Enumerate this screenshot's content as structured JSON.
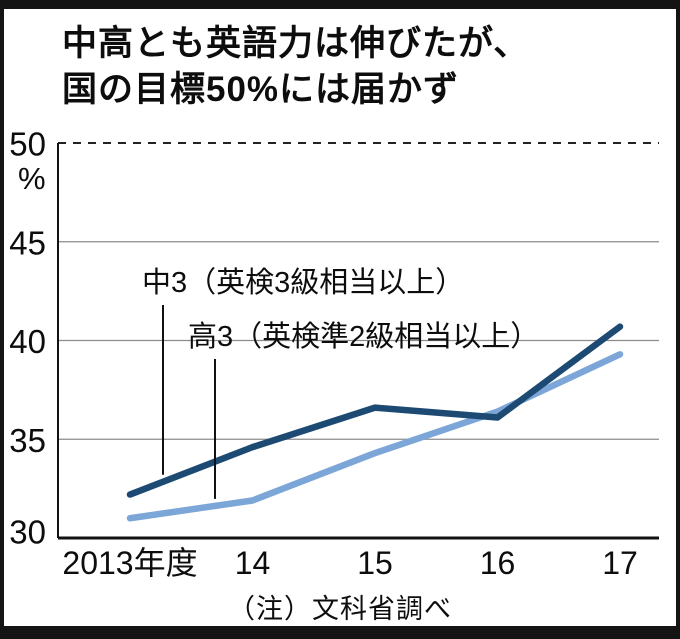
{
  "title": {
    "line1": "中高とも英語力は伸びたが、",
    "line2": "国の目標50%には届かず"
  },
  "note": "（注）文科省調べ",
  "chart_data": {
    "type": "line",
    "categories": [
      "2013年度",
      "14",
      "15",
      "16",
      "17"
    ],
    "series": [
      {
        "name": "中3（英検3級相当以上）",
        "values": [
          32.2,
          34.6,
          36.6,
          36.1,
          40.7
        ],
        "color": "#1d4a73"
      },
      {
        "name": "高3（英検準2級相当以上）",
        "values": [
          31.0,
          31.9,
          34.3,
          36.4,
          39.3
        ],
        "color": "#7ca6d8"
      }
    ],
    "ylim": [
      30,
      50
    ],
    "yticks": [
      30,
      35,
      40,
      45,
      50
    ],
    "y_unit": "%",
    "target_value": 50,
    "grid": true,
    "legend_position": "inline-annotations",
    "xlabel": "",
    "ylabel": "%"
  }
}
